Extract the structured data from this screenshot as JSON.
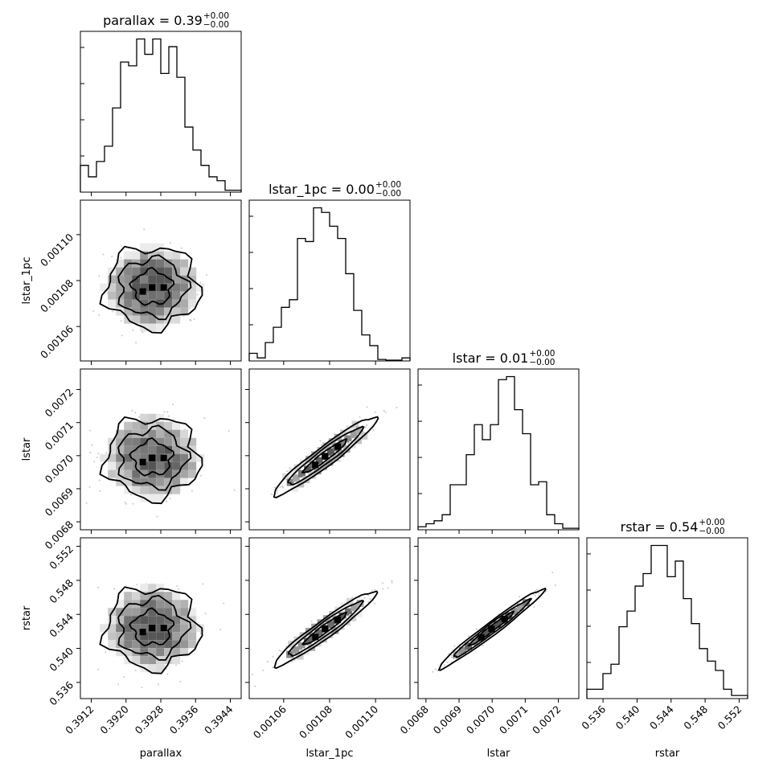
{
  "chart_data": {
    "type": "corner",
    "parameters": [
      "parallax",
      "lstar_1pc",
      "lstar",
      "rstar"
    ],
    "titles": [
      {
        "param": "parallax",
        "text": "parallax = 0.39",
        "sup": "+0.00",
        "sub": "−0.00"
      },
      {
        "param": "lstar_1pc",
        "text": "lstar_1pc = 0.00",
        "sup": "+0.00",
        "sub": "−0.00"
      },
      {
        "param": "lstar",
        "text": "lstar = 0.01",
        "sup": "+0.00",
        "sub": "−0.00"
      },
      {
        "param": "rstar",
        "text": "rstar = 0.54",
        "sup": "+0.00",
        "sub": "−0.00"
      }
    ],
    "ranges": [
      [
        0.39095,
        0.39465
      ],
      [
        0.001045,
        0.001115
      ],
      [
        0.006776,
        0.007262
      ],
      [
        0.5341,
        0.553
      ]
    ],
    "ticks": [
      {
        "values": [
          0.3912,
          0.392,
          0.3928,
          0.3936,
          0.3944
        ],
        "labels": [
          "0.3912",
          "0.3920",
          "0.3928",
          "0.3936",
          "0.3944"
        ]
      },
      {
        "values": [
          0.00106,
          0.00108,
          0.0011
        ],
        "labels": [
          "0.00106",
          "0.00108",
          "0.00110"
        ]
      },
      {
        "values": [
          0.0068,
          0.0069,
          0.007,
          0.0071,
          0.0072
        ],
        "labels": [
          "0.0068",
          "0.0069",
          "0.0070",
          "0.0071",
          "0.0072"
        ]
      },
      {
        "values": [
          0.536,
          0.54,
          0.544,
          0.548,
          0.552
        ],
        "labels": [
          "0.536",
          "0.540",
          "0.544",
          "0.548",
          "0.552"
        ]
      }
    ],
    "histograms": [
      {
        "param": "parallax",
        "counts": [
          7,
          4,
          8,
          12,
          22,
          34,
          33,
          40,
          36,
          40,
          31,
          38,
          30,
          17,
          11,
          7,
          4,
          3,
          0.5,
          0.5
        ]
      },
      {
        "param": "lstar_1pc",
        "counts": [
          5,
          2,
          12,
          22,
          35,
          40,
          80,
          78,
          100,
          97,
          88,
          80,
          57,
          33,
          17,
          10,
          1,
          0.5,
          0.5,
          2
        ]
      },
      {
        "param": "lstar",
        "counts": [
          1,
          2,
          3,
          5,
          15,
          15,
          25,
          35,
          30,
          35,
          50,
          51,
          40,
          32,
          15,
          16,
          5,
          2,
          0.5,
          0.5
        ]
      },
      {
        "param": "rstar",
        "counts": [
          3,
          3,
          8,
          11,
          23,
          28,
          36,
          40,
          49,
          49,
          39,
          44,
          32,
          24,
          16,
          12,
          9,
          3,
          1,
          1
        ]
      }
    ],
    "pairs": [
      {
        "x": "parallax",
        "y": "lstar_1pc",
        "correlation": 0.0,
        "center": [
          0.3926,
          0.001077
        ]
      },
      {
        "x": "parallax",
        "y": "lstar",
        "correlation": 0.0,
        "center": [
          0.3926,
          0.006993
        ]
      },
      {
        "x": "lstar_1pc",
        "y": "lstar",
        "correlation": 0.97,
        "center": [
          0.001078,
          0.006998
        ]
      },
      {
        "x": "parallax",
        "y": "rstar",
        "correlation": 0.0,
        "center": [
          0.3926,
          0.5424
        ]
      },
      {
        "x": "lstar_1pc",
        "y": "rstar",
        "correlation": 0.94,
        "center": [
          0.001078,
          0.5423
        ]
      },
      {
        "x": "lstar",
        "y": "rstar",
        "correlation": 0.98,
        "center": [
          0.006998,
          0.5423
        ]
      }
    ],
    "legend": "none",
    "grid": false
  }
}
